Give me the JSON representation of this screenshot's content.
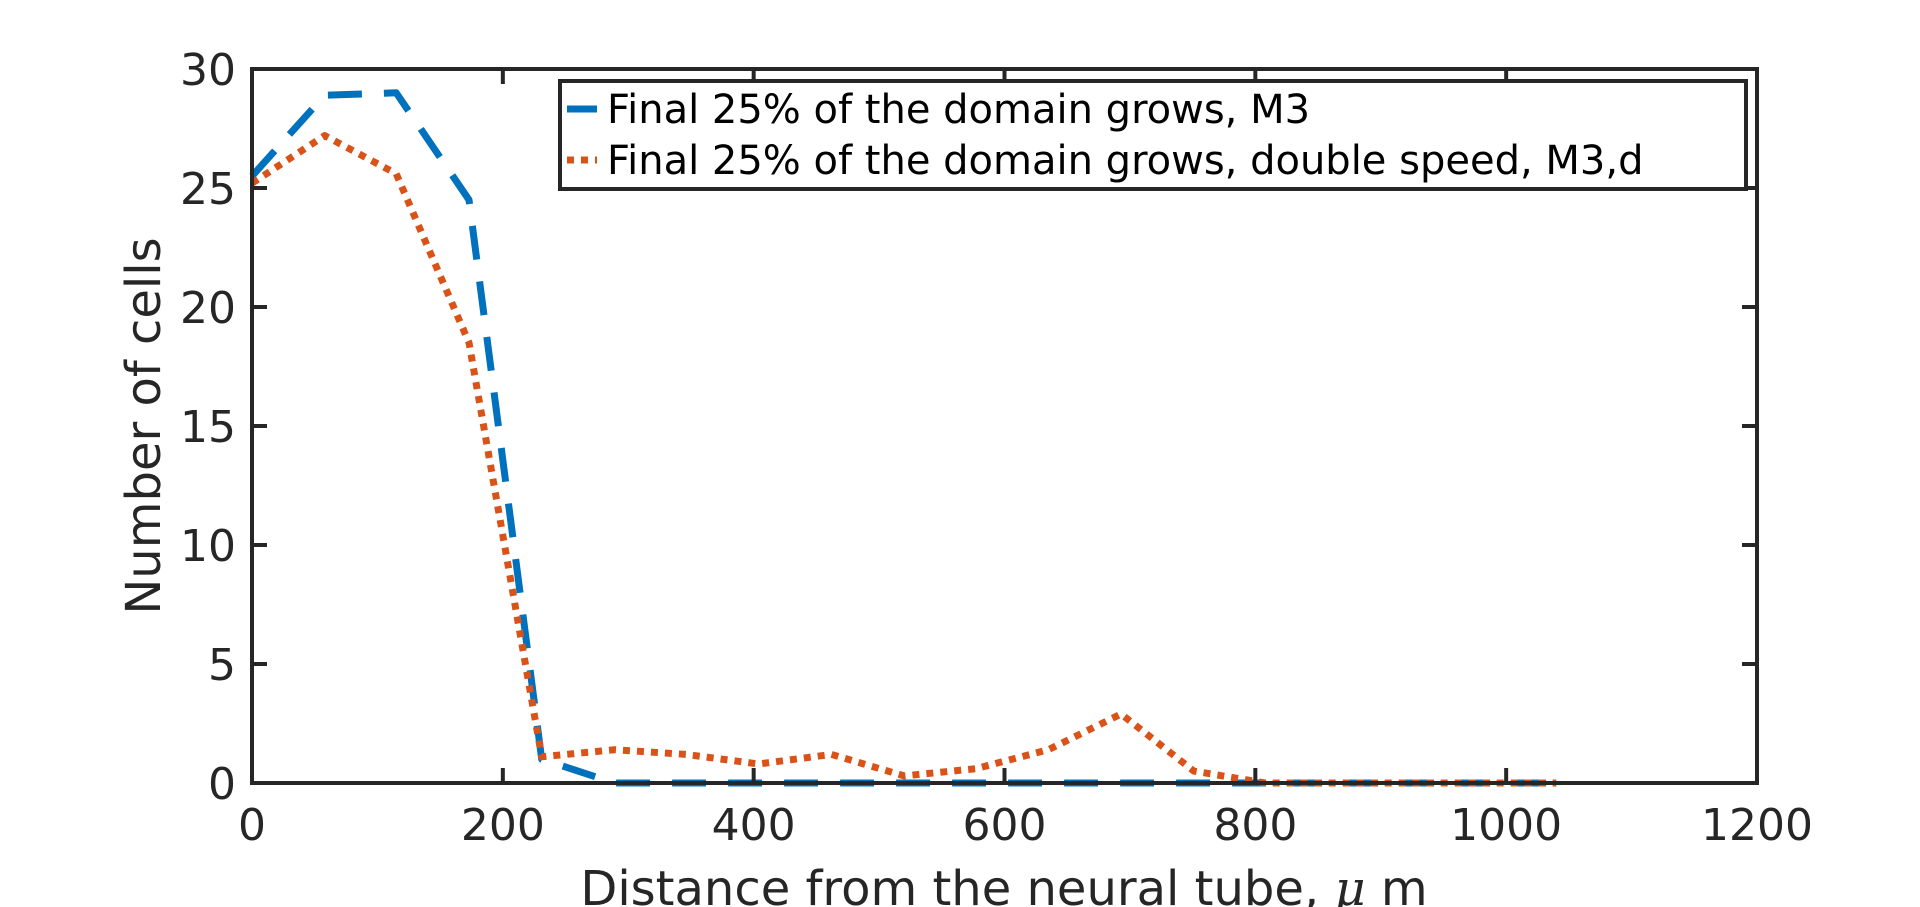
{
  "chart_data": {
    "type": "line",
    "xlabel": "Distance from the neural tube,",
    "xlabel_unit_symbol": "μ",
    "xlabel_unit": " m",
    "ylabel": "Number of cells",
    "xlim": [
      0,
      1200
    ],
    "ylim": [
      0,
      30
    ],
    "xticks": [
      0,
      200,
      400,
      600,
      800,
      1000,
      1200
    ],
    "yticks": [
      0,
      5,
      10,
      15,
      20,
      25,
      30
    ],
    "grid": false,
    "legend_position": "top-right",
    "series": [
      {
        "name": "Final 25% of the domain grows, M3",
        "color": "#0072BD",
        "dash": "dashed",
        "x": [
          0,
          58,
          115,
          173,
          231,
          289,
          346,
          404,
          462,
          520,
          577,
          635,
          693,
          751,
          808,
          866,
          924,
          982,
          1040
        ],
        "y": [
          25.5,
          28.9,
          29.0,
          24.5,
          1.0,
          0,
          0,
          0,
          0,
          0,
          0,
          0,
          0,
          0,
          0,
          0,
          0,
          0,
          0
        ]
      },
      {
        "name": "Final 25% of the domain grows, double speed, M3,d",
        "color": "#D95319",
        "dash": "dotted",
        "x": [
          0,
          58,
          115,
          173,
          231,
          289,
          346,
          404,
          462,
          520,
          577,
          635,
          693,
          751,
          808,
          866,
          924,
          982,
          1040
        ],
        "y": [
          25.2,
          27.2,
          25.6,
          18.5,
          1.1,
          1.4,
          1.2,
          0.8,
          1.2,
          0.3,
          0.6,
          1.4,
          2.9,
          0.5,
          0,
          0,
          0,
          0,
          0
        ]
      }
    ]
  }
}
